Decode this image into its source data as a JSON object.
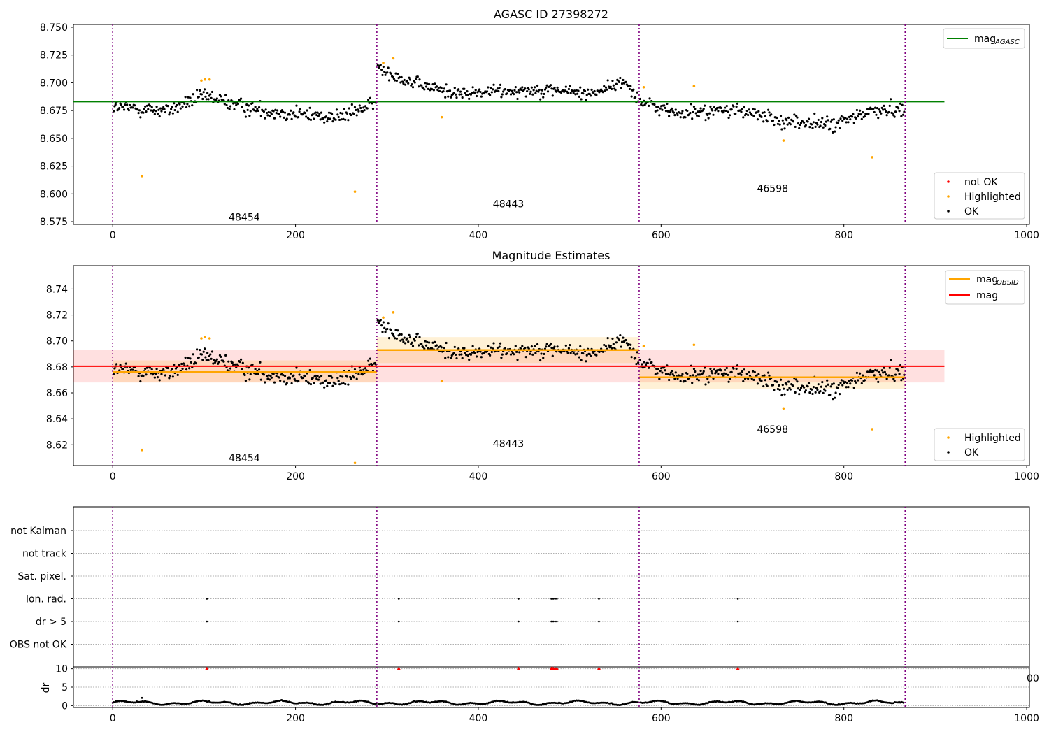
{
  "chart_data": [
    {
      "type": "scatter",
      "title": "AGASC ID 27398272",
      "xlim": [
        -43,
        1003
      ],
      "ylim": [
        8.5725,
        8.7525
      ],
      "xticks": [
        0,
        200,
        400,
        600,
        800,
        1000
      ],
      "yticks": [
        "8.575",
        "8.600",
        "8.625",
        "8.650",
        "8.675",
        "8.700",
        "8.725",
        "8.750"
      ],
      "obsid_boundaries": [
        0,
        289,
        576,
        867
      ],
      "obsid_labels": [
        {
          "text": "48454",
          "x": 144,
          "y": 8.579
        },
        {
          "text": "48443",
          "x": 433,
          "y": 8.591
        },
        {
          "text": "46598",
          "x": 722,
          "y": 8.605
        }
      ],
      "mag_agasc": {
        "value": 8.683,
        "x_range": [
          -43,
          910
        ]
      },
      "legend_lines": [
        "mag"
      ],
      "legend_lines_sub": [
        "AGASC"
      ],
      "legend_points": [
        "not OK",
        "Highlighted",
        "OK"
      ],
      "highlighted_points": [
        {
          "x": 32,
          "y": 8.616
        },
        {
          "x": 97,
          "y": 8.702
        },
        {
          "x": 101,
          "y": 8.703
        },
        {
          "x": 106,
          "y": 8.703
        },
        {
          "x": 265,
          "y": 8.602
        },
        {
          "x": 296,
          "y": 8.718
        },
        {
          "x": 307,
          "y": 8.722
        },
        {
          "x": 360,
          "y": 8.669
        },
        {
          "x": 581,
          "y": 8.696
        },
        {
          "x": 636,
          "y": 8.697
        },
        {
          "x": 734,
          "y": 8.648
        },
        {
          "x": 831,
          "y": 8.633
        }
      ],
      "ok_segments": [
        {
          "x0": 1,
          "x1": 288,
          "n": 275,
          "sigma": 0.0085,
          "shape": [
            [
              0,
              8.678
            ],
            [
              60,
              8.675
            ],
            [
              100,
              8.688
            ],
            [
              150,
              8.677
            ],
            [
              200,
              8.672
            ],
            [
              250,
              8.669
            ],
            [
              288,
              8.682
            ]
          ]
        },
        {
          "x0": 290,
          "x1": 575,
          "n": 275,
          "sigma": 0.0075,
          "shape": [
            [
              290,
              8.714
            ],
            [
              330,
              8.699
            ],
            [
              380,
              8.69
            ],
            [
              430,
              8.693
            ],
            [
              480,
              8.694
            ],
            [
              520,
              8.69
            ],
            [
              560,
              8.701
            ],
            [
              575,
              8.687
            ]
          ]
        },
        {
          "x0": 577,
          "x1": 866,
          "n": 275,
          "sigma": 0.0085,
          "shape": [
            [
              577,
              8.683
            ],
            [
              620,
              8.672
            ],
            [
              680,
              8.676
            ],
            [
              730,
              8.666
            ],
            [
              790,
              8.662
            ],
            [
              830,
              8.675
            ],
            [
              866,
              8.676
            ]
          ]
        }
      ]
    },
    {
      "type": "scatter",
      "title": "Magnitude Estimates",
      "xlim": [
        -43,
        1003
      ],
      "ylim": [
        8.604,
        8.758
      ],
      "xticks": [
        0,
        200,
        400,
        600,
        800,
        1000
      ],
      "yticks": [
        "8.62",
        "8.64",
        "8.66",
        "8.68",
        "8.70",
        "8.72",
        "8.74"
      ],
      "obsid_boundaries": [
        0,
        289,
        576,
        867
      ],
      "obsid_labels": [
        {
          "text": "48454",
          "x": 144,
          "y": 8.61
        },
        {
          "text": "48443",
          "x": 433,
          "y": 8.621
        },
        {
          "text": "46598",
          "x": 722,
          "y": 8.632
        }
      ],
      "mag": {
        "value": 8.6805,
        "band": [
          8.668,
          8.693
        ],
        "x_range": [
          -43,
          910
        ]
      },
      "mag_obsid": [
        {
          "x0": 0,
          "x1": 289,
          "value": 8.676,
          "band": [
            8.668,
            8.685
          ]
        },
        {
          "x0": 289,
          "x1": 576,
          "value": 8.693,
          "band": [
            8.683,
            8.703
          ]
        },
        {
          "x0": 576,
          "x1": 867,
          "value": 8.672,
          "band": [
            8.663,
            8.681
          ]
        }
      ],
      "legend_lines": [
        "mag",
        "mag"
      ],
      "legend_lines_sub": [
        "OBSID",
        ""
      ],
      "legend_points": [
        "Highlighted",
        "OK"
      ],
      "highlighted_points": [
        {
          "x": 32,
          "y": 8.616
        },
        {
          "x": 97,
          "y": 8.702
        },
        {
          "x": 101,
          "y": 8.703
        },
        {
          "x": 106,
          "y": 8.702
        },
        {
          "x": 265,
          "y": 8.606
        },
        {
          "x": 296,
          "y": 8.718
        },
        {
          "x": 307,
          "y": 8.722
        },
        {
          "x": 360,
          "y": 8.669
        },
        {
          "x": 581,
          "y": 8.696
        },
        {
          "x": 636,
          "y": 8.697
        },
        {
          "x": 734,
          "y": 8.648
        },
        {
          "x": 831,
          "y": 8.632
        }
      ]
    },
    {
      "type": "scatter",
      "title": "",
      "xlim": [
        -43,
        1003
      ],
      "xticks": [
        0,
        200,
        400,
        600,
        800,
        1000
      ],
      "flag_rows": [
        "not Kalman",
        "not track",
        "Sat. pixel.",
        "Ion. rad.",
        "dr > 5",
        "OBS not OK"
      ],
      "flag_events": {
        "Ion. rad.": [
          103,
          313,
          444,
          480,
          482,
          484,
          486,
          532,
          684
        ],
        "dr > 5": [
          103,
          313,
          444,
          480,
          482,
          484,
          486,
          532,
          684
        ]
      },
      "obsid_boundaries": [
        0,
        289,
        576,
        867
      ]
    },
    {
      "type": "line",
      "title": "",
      "ylabel": "dr",
      "xlim": [
        -43,
        1003
      ],
      "ylim": [
        -0.5,
        10.5
      ],
      "xticks": [
        0,
        200,
        400,
        600,
        800,
        1000
      ],
      "yticks": [
        "0",
        "5",
        "10"
      ],
      "clipped_tick": "00",
      "dr_high_markers": [
        103,
        313,
        444,
        480,
        482,
        484,
        486,
        532,
        684
      ],
      "dr_spike": {
        "x": 32,
        "y": 2.1
      },
      "obsid_boundaries": [
        0,
        289,
        576,
        867
      ]
    }
  ],
  "colors": {
    "ok": "#000000",
    "highlighted": "#ffa500",
    "not_ok": "#ff0000",
    "mag_agasc": "#008000",
    "mag": "#ff0000",
    "mag_obsid": "#ffa500",
    "boundary": "#800080"
  }
}
